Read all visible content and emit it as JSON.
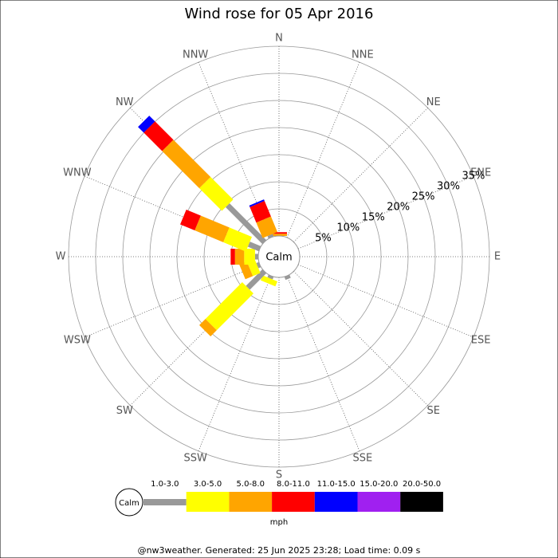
{
  "chart_data": {
    "type": "windrose",
    "title": "Wind rose for 05 Apr 2016",
    "categories": [
      "N",
      "NNE",
      "NE",
      "ENE",
      "E",
      "ESE",
      "SE",
      "SSE",
      "S",
      "SSW",
      "SW",
      "WSW",
      "W",
      "WNW",
      "NW",
      "NNW"
    ],
    "calm_label": "Calm",
    "unit_label": "mph",
    "footer": "@nw3weather. Generated: 25 Jun 2025 23:28; Load time: 0.09 s",
    "rlim": [
      0,
      35
    ],
    "rticks": [
      {
        "value": 5,
        "label": "5%"
      },
      {
        "value": 10,
        "label": "10%"
      },
      {
        "value": 15,
        "label": "15%"
      },
      {
        "value": 20,
        "label": "20%"
      },
      {
        "value": 25,
        "label": "25%"
      },
      {
        "value": 30,
        "label": "30%"
      },
      {
        "value": 35,
        "label": "35%"
      }
    ],
    "series": [
      {
        "name": "1.0-3.0",
        "color": "#999999",
        "values": [
          0,
          0,
          0,
          0,
          0,
          0,
          0,
          0.6,
          0,
          0.5,
          4.3,
          0.5,
          0.6,
          2.2,
          9.6,
          0.5
        ]
      },
      {
        "name": "3.0-5.0",
        "color": "#ffff00",
        "values": [
          0,
          0,
          0,
          0,
          0,
          0,
          0,
          0,
          0,
          1.0,
          9.6,
          1.5,
          2.0,
          4.5,
          5.9,
          0
        ]
      },
      {
        "name": "5.0-8.0",
        "color": "#ffa500",
        "values": [
          0.4,
          0,
          0,
          0,
          0,
          0,
          0,
          0,
          0,
          0,
          1.6,
          1.5,
          1.7,
          5.7,
          9.7,
          3.1
        ]
      },
      {
        "name": "8.0-11.0",
        "color": "#ff0000",
        "values": [
          0.3,
          0,
          0,
          0,
          0,
          0,
          0,
          0,
          0,
          0,
          0,
          0,
          0.8,
          2.9,
          4.8,
          3.1
        ]
      },
      {
        "name": "11.0-15.0",
        "color": "#0000ff",
        "values": [
          0,
          0,
          0,
          0,
          0,
          0,
          0,
          0,
          0,
          0,
          0,
          0,
          0,
          0,
          1.5,
          0.3
        ]
      },
      {
        "name": "15.0-20.0",
        "color": "#a020f0",
        "values": [
          0,
          0,
          0,
          0,
          0,
          0,
          0,
          0,
          0,
          0,
          0,
          0,
          0,
          0,
          0,
          0
        ]
      },
      {
        "name": "20.0-50.0",
        "color": "#000000",
        "values": [
          0,
          0,
          0,
          0,
          0,
          0,
          0,
          0,
          0,
          0,
          0,
          0,
          0,
          0,
          0,
          0
        ]
      }
    ]
  }
}
